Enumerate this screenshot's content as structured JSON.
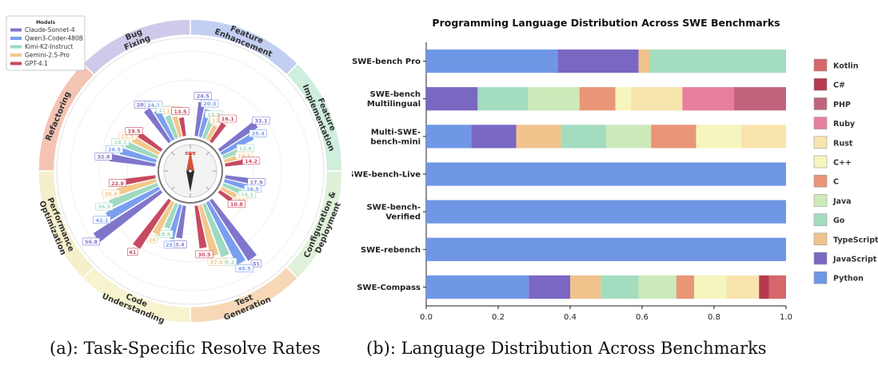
{
  "captions": {
    "a": "(a): Task-Specific Resolve Rates",
    "b": "(b): Language Distribution Across Benchmarks"
  },
  "chart_data": [
    {
      "type": "radial-bar",
      "legend": {
        "title": "Models",
        "placement": "top-left"
      },
      "center_label": "SWE",
      "series": [
        {
          "name": "Claude-Sonnet-4",
          "color": "#7f76cc"
        },
        {
          "name": "Qwen3-Coder-480B",
          "color": "#7b9ff0"
        },
        {
          "name": "Kimi-K2-Instruct",
          "color": "#9fd9c1"
        },
        {
          "name": "Gemini-2.5-Pro",
          "color": "#f2c88b"
        },
        {
          "name": "GPT-4.1",
          "color": "#c74a60"
        }
      ],
      "categories": [
        {
          "label": [
            "Feature",
            "Enhancement"
          ],
          "color": "#c3cff2",
          "values": [
            24.5,
            20.3,
            13.9,
            11.8,
            16.1
          ]
        },
        {
          "label": [
            "Feature",
            "Implementation"
          ],
          "color": "#cfeedd",
          "values": [
            32.1,
            25.4,
            12.8,
            10.2,
            14.2
          ]
        },
        {
          "label": [
            "Configuration &",
            "Deployment"
          ],
          "color": "#dff2d9",
          "values": [
            17.9,
            16.5,
            14.1,
            12.0,
            10.8
          ]
        },
        {
          "label": [
            "Test",
            "Generation"
          ],
          "color": "#f6d8b7",
          "values": [
            51,
            49.5,
            40.2,
            37.6,
            30.5
          ]
        },
        {
          "label": [
            "Code",
            "Understanding"
          ],
          "color": "#f7f3cf",
          "values": [
            23.4,
            25,
            18.9,
            26.0,
            41
          ]
        },
        {
          "label": [
            "Performance",
            "Optimization"
          ],
          "color": "#f5efcc",
          "values": [
            56.8,
            42.1,
            36.5,
            28.9,
            22.8
          ]
        },
        {
          "label": [
            "Refactoring"
          ],
          "color": "#f3c4b4",
          "values": [
            32.8,
            26.5,
            24.1,
            21.5,
            19.5
          ]
        },
        {
          "label": [
            "Bug",
            "Fixing"
          ],
          "color": "#cfc9ea",
          "values": [
            28.2,
            24.1,
            17.4,
            15.2,
            13.5
          ]
        }
      ]
    },
    {
      "type": "bar",
      "orientation": "horizontal-stacked",
      "title": "Programming Language Distribution Across SWE Benchmarks",
      "xlim": [
        0,
        1.0
      ],
      "xticks": [
        "0.0",
        "0.2",
        "0.4",
        "0.6",
        "0.8",
        "1.0"
      ],
      "languages": [
        {
          "name": "Python",
          "color": "#6f97e6"
        },
        {
          "name": "JavaScript",
          "color": "#7a67c2"
        },
        {
          "name": "TypeScript",
          "color": "#f0c38d"
        },
        {
          "name": "Go",
          "color": "#a4dcc0"
        },
        {
          "name": "Java",
          "color": "#cdeaba"
        },
        {
          "name": "C",
          "color": "#e89677"
        },
        {
          "name": "C++",
          "color": "#f6f5bd"
        },
        {
          "name": "Rust",
          "color": "#f8e4ad"
        },
        {
          "name": "Ruby",
          "color": "#e77f9e"
        },
        {
          "name": "PHP",
          "color": "#c0647c"
        },
        {
          "name": "C#",
          "color": "#b53a4e"
        },
        {
          "name": "Kotlin",
          "color": "#d6676a"
        }
      ],
      "benchmarks": [
        {
          "label": [
            "SWE-bench Pro"
          ],
          "segments": [
            [
              "Python",
              0.365
            ],
            [
              "JavaScript",
              0.225
            ],
            [
              "TypeScript",
              0.03
            ],
            [
              "Go",
              0.38
            ]
          ]
        },
        {
          "label": [
            "SWE-bench",
            "Multilingual"
          ],
          "segments": [
            [
              "JavaScript",
              0.143
            ],
            [
              "Go",
              0.14
            ],
            [
              "Java",
              0.143
            ],
            [
              "C",
              0.1
            ],
            [
              "C++",
              0.043
            ],
            [
              "Rust",
              0.143
            ],
            [
              "Ruby",
              0.143
            ],
            [
              "PHP",
              0.145
            ]
          ]
        },
        {
          "label": [
            "Multi-SWE-",
            "bench-mini"
          ],
          "segments": [
            [
              "Python",
              0.125
            ],
            [
              "JavaScript",
              0.125
            ],
            [
              "TypeScript",
              0.125
            ],
            [
              "Go",
              0.125
            ],
            [
              "Java",
              0.125
            ],
            [
              "C",
              0.125
            ],
            [
              "C++",
              0.125
            ],
            [
              "Rust",
              0.125
            ]
          ]
        },
        {
          "label": [
            "SWE-bench-Live"
          ],
          "segments": [
            [
              "Python",
              1.0
            ]
          ]
        },
        {
          "label": [
            "SWE-bench-",
            "Verified"
          ],
          "segments": [
            [
              "Python",
              1.0
            ]
          ]
        },
        {
          "label": [
            "SWE-rebench"
          ],
          "segments": [
            [
              "Python",
              1.0
            ]
          ]
        },
        {
          "label": [
            "SWE-Compass"
          ],
          "segments": [
            [
              "Python",
              0.285
            ],
            [
              "JavaScript",
              0.115
            ],
            [
              "TypeScript",
              0.085
            ],
            [
              "Go",
              0.105
            ],
            [
              "Java",
              0.105
            ],
            [
              "C",
              0.05
            ],
            [
              "C++",
              0.09
            ],
            [
              "Rust",
              0.09
            ],
            [
              "C#",
              0.028
            ],
            [
              "Kotlin",
              0.047
            ]
          ]
        }
      ]
    }
  ]
}
